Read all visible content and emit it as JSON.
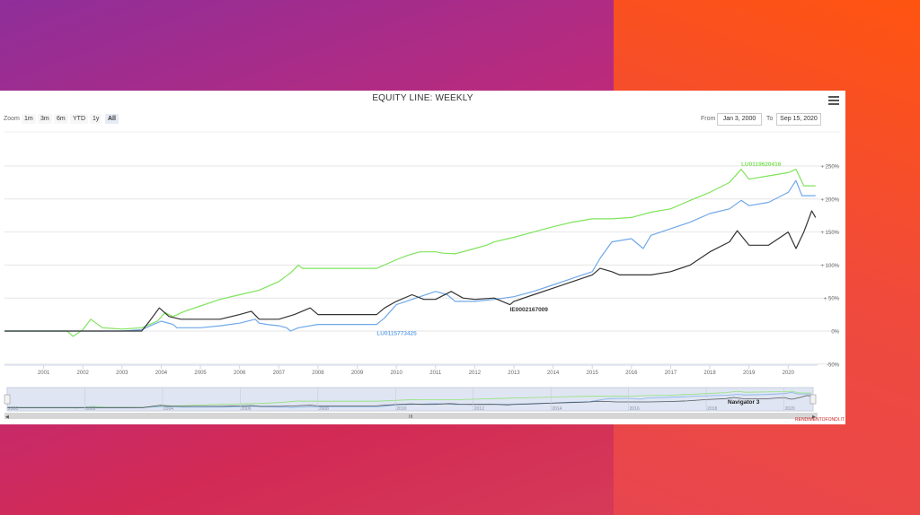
{
  "title": "EQUITY LINE: WEEKLY",
  "zoom": {
    "label": "Zoom",
    "buttons": [
      "1m",
      "3m",
      "6m",
      "YTD",
      "1y",
      "All"
    ],
    "active": "All"
  },
  "range": {
    "from_label": "From",
    "from_value": "Jan 3, 2000",
    "to_label": "To",
    "to_value": "Sep 15, 2020"
  },
  "navigator_label": "Navigator 3",
  "credit": "RENDIMENTOFONDI.IT",
  "menu_icon": "hamburger-icon",
  "chart_data": {
    "type": "line",
    "title": "EQUITY LINE: WEEKLY",
    "x_type": "year",
    "xlim": [
      2000.0,
      2020.75
    ],
    "ylim": [
      -50,
      250
    ],
    "y_ticks": [
      -50,
      0,
      50,
      100,
      150,
      200,
      250
    ],
    "y_tick_labels": [
      "-50%",
      "0%",
      "+ 50%",
      "+ 100%",
      "+ 150%",
      "+ 200%",
      "+ 250%"
    ],
    "x_ticks": [
      2001,
      2002,
      2003,
      2004,
      2005,
      2006,
      2007,
      2008,
      2009,
      2010,
      2011,
      2012,
      2013,
      2014,
      2015,
      2016,
      2017,
      2018,
      2019,
      2020
    ],
    "grid": true,
    "series": [
      {
        "name": "LU0119620416",
        "color": "#7fe35c",
        "label_at": [
          2018.8,
          250
        ],
        "points": [
          [
            2000.0,
            0
          ],
          [
            2001.0,
            0
          ],
          [
            2001.6,
            0
          ],
          [
            2001.75,
            -8
          ],
          [
            2002.0,
            2
          ],
          [
            2002.2,
            18
          ],
          [
            2002.5,
            5
          ],
          [
            2003.0,
            3
          ],
          [
            2003.5,
            5
          ],
          [
            2003.9,
            15
          ],
          [
            2004.1,
            28
          ],
          [
            2004.3,
            22
          ],
          [
            2004.6,
            30
          ],
          [
            2005.0,
            38
          ],
          [
            2005.5,
            48
          ],
          [
            2006.0,
            55
          ],
          [
            2006.5,
            62
          ],
          [
            2007.0,
            75
          ],
          [
            2007.3,
            88
          ],
          [
            2007.5,
            100
          ],
          [
            2007.6,
            95
          ],
          [
            2008.0,
            95
          ],
          [
            2009.0,
            95
          ],
          [
            2009.5,
            95
          ],
          [
            2010.0,
            108
          ],
          [
            2010.3,
            115
          ],
          [
            2010.6,
            120
          ],
          [
            2011.0,
            120
          ],
          [
            2011.2,
            118
          ],
          [
            2011.5,
            117
          ],
          [
            2012.0,
            125
          ],
          [
            2012.3,
            130
          ],
          [
            2012.5,
            135
          ],
          [
            2013.0,
            142
          ],
          [
            2013.5,
            150
          ],
          [
            2014.0,
            158
          ],
          [
            2014.5,
            165
          ],
          [
            2015.0,
            170
          ],
          [
            2015.5,
            170
          ],
          [
            2016.0,
            172
          ],
          [
            2016.5,
            180
          ],
          [
            2017.0,
            185
          ],
          [
            2017.5,
            198
          ],
          [
            2018.0,
            210
          ],
          [
            2018.5,
            225
          ],
          [
            2018.8,
            245
          ],
          [
            2019.0,
            230
          ],
          [
            2019.5,
            235
          ],
          [
            2020.0,
            240
          ],
          [
            2020.2,
            245
          ],
          [
            2020.4,
            220
          ],
          [
            2020.7,
            220
          ]
        ]
      },
      {
        "name": "LU0115773425",
        "color": "#6fa8e8",
        "label_at": [
          2009.5,
          -6
        ],
        "points": [
          [
            2000.0,
            0
          ],
          [
            2001.0,
            0
          ],
          [
            2002.0,
            0
          ],
          [
            2003.0,
            0
          ],
          [
            2003.5,
            2
          ],
          [
            2003.8,
            10
          ],
          [
            2004.0,
            15
          ],
          [
            2004.3,
            10
          ],
          [
            2004.4,
            5
          ],
          [
            2005.0,
            5
          ],
          [
            2005.5,
            8
          ],
          [
            2006.0,
            12
          ],
          [
            2006.4,
            18
          ],
          [
            2006.5,
            12
          ],
          [
            2006.7,
            10
          ],
          [
            2007.0,
            8
          ],
          [
            2007.2,
            5
          ],
          [
            2007.3,
            0
          ],
          [
            2007.5,
            5
          ],
          [
            2008.0,
            10
          ],
          [
            2009.0,
            10
          ],
          [
            2009.5,
            10
          ],
          [
            2009.7,
            20
          ],
          [
            2010.0,
            40
          ],
          [
            2010.5,
            50
          ],
          [
            2011.0,
            60
          ],
          [
            2011.3,
            55
          ],
          [
            2011.5,
            45
          ],
          [
            2012.0,
            45
          ],
          [
            2012.5,
            48
          ],
          [
            2013.0,
            52
          ],
          [
            2013.5,
            60
          ],
          [
            2014.0,
            70
          ],
          [
            2014.5,
            80
          ],
          [
            2015.0,
            90
          ],
          [
            2015.2,
            110
          ],
          [
            2015.5,
            135
          ],
          [
            2016.0,
            140
          ],
          [
            2016.3,
            125
          ],
          [
            2016.5,
            145
          ],
          [
            2017.0,
            155
          ],
          [
            2017.5,
            165
          ],
          [
            2018.0,
            178
          ],
          [
            2018.5,
            185
          ],
          [
            2018.8,
            198
          ],
          [
            2019.0,
            190
          ],
          [
            2019.5,
            195
          ],
          [
            2020.0,
            210
          ],
          [
            2020.2,
            228
          ],
          [
            2020.35,
            205
          ],
          [
            2020.7,
            205
          ]
        ]
      },
      {
        "name": "IE0002167009",
        "color": "#333333",
        "label_at": [
          2012.9,
          30
        ],
        "points": [
          [
            2000.0,
            0
          ],
          [
            2000.75,
            0
          ],
          [
            2001.0,
            0
          ],
          [
            2002.0,
            0
          ],
          [
            2003.0,
            0
          ],
          [
            2003.5,
            0
          ],
          [
            2003.7,
            15
          ],
          [
            2003.95,
            35
          ],
          [
            2004.2,
            22
          ],
          [
            2004.5,
            18
          ],
          [
            2005.0,
            18
          ],
          [
            2005.5,
            18
          ],
          [
            2006.0,
            25
          ],
          [
            2006.3,
            30
          ],
          [
            2006.5,
            18
          ],
          [
            2007.0,
            18
          ],
          [
            2007.4,
            25
          ],
          [
            2007.8,
            35
          ],
          [
            2008.0,
            25
          ],
          [
            2009.0,
            25
          ],
          [
            2009.5,
            25
          ],
          [
            2009.7,
            35
          ],
          [
            2010.0,
            45
          ],
          [
            2010.4,
            55
          ],
          [
            2010.7,
            48
          ],
          [
            2011.0,
            48
          ],
          [
            2011.4,
            60
          ],
          [
            2011.7,
            50
          ],
          [
            2012.0,
            48
          ],
          [
            2012.5,
            50
          ],
          [
            2012.9,
            40
          ],
          [
            2013.0,
            45
          ],
          [
            2013.5,
            55
          ],
          [
            2014.0,
            65
          ],
          [
            2014.5,
            75
          ],
          [
            2015.0,
            85
          ],
          [
            2015.2,
            95
          ],
          [
            2015.5,
            90
          ],
          [
            2015.7,
            85
          ],
          [
            2016.0,
            85
          ],
          [
            2016.5,
            85
          ],
          [
            2017.0,
            90
          ],
          [
            2017.5,
            100
          ],
          [
            2018.0,
            120
          ],
          [
            2018.5,
            135
          ],
          [
            2018.7,
            152
          ],
          [
            2019.0,
            130
          ],
          [
            2019.5,
            130
          ],
          [
            2020.0,
            150
          ],
          [
            2020.2,
            125
          ],
          [
            2020.4,
            150
          ],
          [
            2020.6,
            182
          ],
          [
            2020.7,
            172
          ]
        ]
      }
    ],
    "navigator": {
      "x_tick_labels": [
        "2000",
        "2002",
        "2004",
        "2006",
        "2008",
        "2010",
        "2012",
        "2014",
        "2016",
        "2018",
        "2020"
      ],
      "label": "Navigator 3"
    }
  }
}
